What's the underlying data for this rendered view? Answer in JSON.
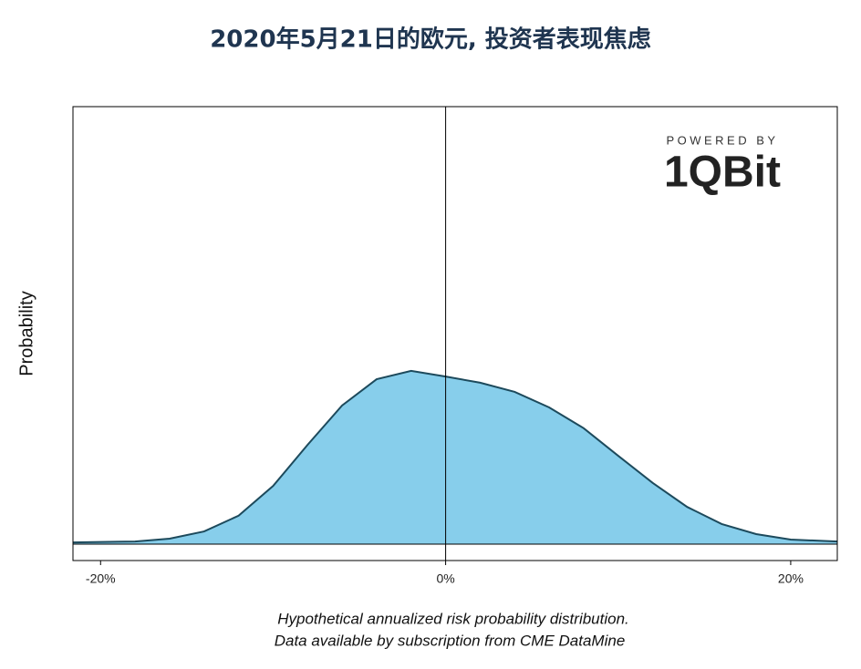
{
  "chart_data": {
    "type": "area",
    "title": "2020年5月21日的欧元, 投资者表现焦虑",
    "y_label": "Probability",
    "x": [
      -21.6,
      -18,
      -16,
      -14,
      -12,
      -10,
      -8,
      -6,
      -4,
      -2,
      0,
      2,
      4,
      6,
      8,
      10,
      12,
      14,
      16,
      18,
      20,
      22.7
    ],
    "values": [
      0.004,
      0.006,
      0.0125,
      0.029,
      0.065,
      0.133,
      0.227,
      0.317,
      0.377,
      0.396,
      0.383,
      0.369,
      0.348,
      0.3125,
      0.265,
      0.202,
      0.14,
      0.085,
      0.046,
      0.023,
      0.0104,
      0.006
    ],
    "color": "#87ceeb",
    "line_color": "#1d4a5c",
    "xlim": [
      -21.6,
      22.7
    ],
    "ylim": [
      -0.0375,
      1
    ],
    "xticks": [
      {
        "value": -20,
        "label": "-20%"
      },
      {
        "value": 0,
        "label": "0%"
      },
      {
        "value": 20,
        "label": "20%"
      }
    ],
    "vline": 0,
    "hline": 0,
    "logo": {
      "caption": "POWERED BY",
      "name": "1QBit"
    },
    "notes": [
      "Hypothetical annualized risk probability distribution.",
      "Data available by subscription from CME DataMine"
    ]
  }
}
